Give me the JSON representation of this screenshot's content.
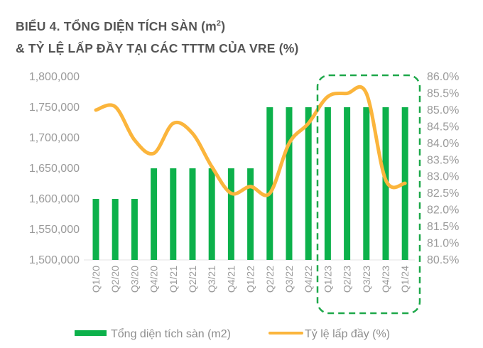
{
  "title": {
    "line1": "BIỂU 4. TỔNG DIỆN TÍCH SÀN  (m",
    "line1_sup": "2",
    "line1_end": ")",
    "line2": "& TỶ LỆ LẤP ĐẦY TẠI CÁC TTTM CỦA VRE (%)"
  },
  "colors": {
    "bar": "#0db14b",
    "line": "#fbb53c",
    "highlight_box": "#1ea84a",
    "axis_text": "#9a9a9a",
    "title": "#555555"
  },
  "chart_data": {
    "type": "bar+line",
    "title": "BIỂU 4. TỔNG DIỆN TÍCH SÀN (m2) & TỶ LỆ LẤP ĐẦY TẠI CÁC TTTM CỦA VRE (%)",
    "categories": [
      "Q1/20",
      "Q2/20",
      "Q3/20",
      "Q4/20",
      "Q1/21",
      "Q2/21",
      "Q3/21",
      "Q4/21",
      "Q1/22",
      "Q2/22",
      "Q3/22",
      "Q4/22",
      "Q1/23",
      "Q2/23",
      "Q3/23",
      "Q4/23",
      "Q1/24"
    ],
    "series": [
      {
        "name": "Tổng diện tích sàn (m2)",
        "type": "bar",
        "axis": "left",
        "values": [
          1600000,
          1600000,
          1600000,
          1650000,
          1650000,
          1650000,
          1650000,
          1650000,
          1650000,
          1750000,
          1750000,
          1750000,
          1750000,
          1750000,
          1750000,
          1750000,
          1750000
        ]
      },
      {
        "name": "Tỷ lệ lấp đầy (%)",
        "type": "line",
        "axis": "right",
        "values": [
          85.0,
          85.1,
          84.1,
          83.7,
          84.6,
          84.3,
          83.3,
          82.5,
          82.7,
          82.5,
          84.0,
          84.6,
          85.4,
          85.5,
          85.5,
          82.9,
          82.8
        ]
      }
    ],
    "y_left": {
      "ylim": [
        1500000,
        1800000
      ],
      "ticks": [
        "1,500,000",
        "1,550,000",
        "1,600,000",
        "1,650,000",
        "1,700,000",
        "1,750,000",
        "1,800,000"
      ]
    },
    "y_right": {
      "ylim": [
        80.5,
        86.0
      ],
      "ticks": [
        "80.5%",
        "81.0%",
        "81.5%",
        "82.0%",
        "82.5%",
        "83.0%",
        "83.5%",
        "84.0%",
        "84.5%",
        "85.0%",
        "85.5%",
        "86.0%"
      ]
    },
    "xlabel": "",
    "ylabel": "",
    "grid": false,
    "legend_position": "bottom",
    "annotation": "dashed green rounded box highlighting Q1/23–Q1/24"
  },
  "legend": {
    "bar_label": "Tổng diện tích sàn (m2)",
    "line_label": "Tỷ lệ lấp đầy (%)"
  }
}
